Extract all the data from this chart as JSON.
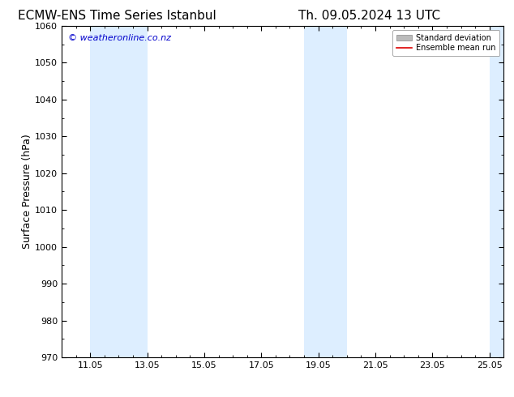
{
  "title_left": "ECMW-ENS Time Series Istanbul",
  "title_right": "Th. 09.05.2024 13 UTC",
  "ylabel": "Surface Pressure (hPa)",
  "ylim": [
    970,
    1060
  ],
  "yticks": [
    970,
    980,
    990,
    1000,
    1010,
    1020,
    1030,
    1040,
    1050,
    1060
  ],
  "xlim_start": 10.0,
  "xlim_end": 25.5,
  "xtick_labels": [
    "11.05",
    "13.05",
    "15.05",
    "17.05",
    "19.05",
    "21.05",
    "23.05",
    "25.05"
  ],
  "xtick_positions": [
    11.0,
    13.0,
    15.0,
    17.0,
    19.0,
    21.0,
    23.0,
    25.0
  ],
  "shaded_bands": [
    {
      "x_start": 10.0,
      "x_end": 11.0
    },
    {
      "x_start": 11.0,
      "x_end": 13.0
    },
    {
      "x_start": 18.5,
      "x_end": 20.0
    },
    {
      "x_start": 25.0,
      "x_end": 25.5
    }
  ],
  "shaded_band_alpha": [
    false,
    true,
    true,
    true
  ],
  "shaded_color": "#ddeeff",
  "background_color": "#ffffff",
  "watermark_text": "© weatheronline.co.nz",
  "watermark_color": "#0000cc",
  "legend_std_color": "#bbbbbb",
  "legend_mean_color": "#dd0000",
  "title_fontsize": 11,
  "axis_label_fontsize": 9,
  "tick_fontsize": 8,
  "watermark_fontsize": 8
}
